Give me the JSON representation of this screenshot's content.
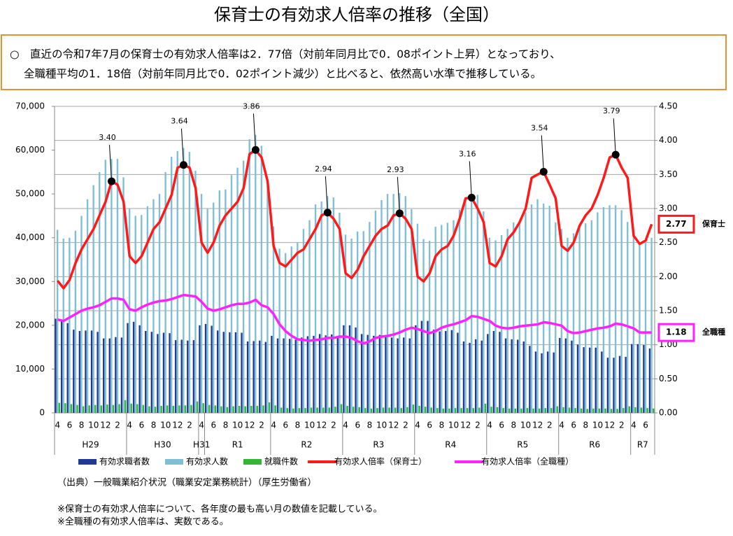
{
  "chart_data": {
    "type": "bar-line",
    "title": "保育士の有効求人倍率の推移（全国）",
    "summary": [
      "○　直近の令和7年7月の保育士の有効求人倍率は2．77倍（対前年同月比で0．08ポイント上昇）となっており、",
      "全職種平均の1．18倍（対前年同月比で0．02ポイント減少）と比べると、依然高い水準で推移している。"
    ],
    "notes": [
      "（出典）一般職業紹介状況（職業安定業務統計）（厚生労働省）",
      "※保育士の有効求人倍率について、各年度の最も高い月の数値を記載している。",
      "※全職種の有効求人倍率は、実数である。"
    ],
    "categories": [
      "4",
      null,
      "6",
      null,
      "8",
      null,
      "10",
      null,
      "12",
      null,
      "2",
      null,
      "4",
      null,
      "6",
      null,
      "8",
      null,
      "10",
      null,
      "12",
      null,
      "2",
      null,
      "4",
      null,
      "6",
      null,
      "8",
      null,
      "10",
      null,
      "12",
      null,
      "2",
      null,
      "4",
      null,
      "6",
      null,
      "8",
      null,
      "10",
      null,
      "12",
      null,
      "2",
      null,
      "4",
      null,
      "6",
      null,
      "8",
      null,
      "10",
      null,
      "12",
      null,
      "2",
      null,
      "4",
      null,
      "6",
      null,
      "8",
      null,
      "10",
      null,
      "12",
      null,
      "2",
      null,
      "4",
      null,
      "6",
      null,
      "8",
      null,
      "10",
      null,
      "12",
      null,
      "2",
      null,
      "4",
      null,
      "6",
      null,
      "8",
      null,
      "10",
      null,
      "12",
      null,
      "2",
      null,
      "4",
      null,
      "6",
      null
    ],
    "groups": [
      {
        "label": "H29",
        "months": 12
      },
      {
        "label": "H30",
        "months": 12
      },
      {
        "label": "H31",
        "months": 1
      },
      {
        "label": "R1",
        "months": 11
      },
      {
        "label": "R2",
        "months": 12
      },
      {
        "label": "R3",
        "months": 12
      },
      {
        "label": "R4",
        "months": 12
      },
      {
        "label": "R5",
        "months": 12
      },
      {
        "label": "R6",
        "months": 12
      },
      {
        "label": "R7",
        "months": 4
      }
    ],
    "ylim": [
      0,
      70000
    ],
    "yticks": [
      0,
      {
        "value": 10000,
        "label": "10,000"
      },
      {
        "value": 20000,
        "label": "20,000"
      },
      {
        "value": 30000,
        "label": "30,000"
      },
      {
        "value": 40000,
        "label": "40,000"
      },
      {
        "value": 50000,
        "label": "50,000"
      },
      {
        "value": 60000,
        "label": "60,000"
      },
      {
        "value": 70000,
        "label": "70,000"
      }
    ],
    "y2lim": [
      0,
      4.5
    ],
    "y2ticks": [
      {
        "value": 0,
        "label": "0.00"
      },
      {
        "value": 0.5,
        "label": "0.50"
      },
      {
        "value": 1,
        "label": "1.00"
      },
      {
        "value": 1.5,
        "label": "1.50"
      },
      {
        "value": 2,
        "label": "2.00"
      },
      {
        "value": 2.5,
        "label": "2.50"
      },
      {
        "value": 3,
        "label": "3.00"
      },
      {
        "value": 3.5,
        "label": "3.50"
      },
      {
        "value": 4,
        "label": "4.00"
      },
      {
        "value": 4.5,
        "label": "4.50"
      }
    ],
    "grid": true,
    "series": [
      {
        "name": "有効求職者数",
        "kind": "bar",
        "color": "#1f3a93",
        "values": [
          21500,
          21000,
          20500,
          19000,
          18700,
          18800,
          18800,
          18500,
          17000,
          17000,
          17300,
          17200,
          20500,
          20800,
          20000,
          18700,
          18500,
          18000,
          18300,
          18200,
          16600,
          16700,
          16500,
          16600,
          20000,
          20300,
          19900,
          18800,
          18500,
          18400,
          18400,
          18300,
          16300,
          16400,
          16500,
          16200,
          17600,
          17000,
          17000,
          16900,
          16700,
          17200,
          17500,
          17600,
          18000,
          17700,
          17900,
          17200,
          20000,
          20000,
          19500,
          18000,
          17800,
          17600,
          17800,
          17500,
          17200,
          17000,
          17200,
          17000,
          20000,
          21000,
          21000,
          19000,
          18600,
          18700,
          18900,
          18300,
          16300,
          16000,
          16800,
          16500,
          18000,
          18700,
          18500,
          17000,
          16800,
          16700,
          16300,
          15300,
          14000,
          13600,
          14000,
          13800,
          17100,
          17000,
          16500,
          15600,
          15000,
          14900,
          14900,
          14000,
          12600,
          12600,
          13000,
          12800,
          15700,
          15700,
          15500,
          14700
        ]
      },
      {
        "name": "有効求人数",
        "kind": "bar",
        "color": "#7fbfd6",
        "values": [
          41800,
          39800,
          40000,
          41600,
          45000,
          48800,
          52000,
          55000,
          57800,
          58000,
          58000,
          53800,
          46600,
          45000,
          45200,
          47200,
          48800,
          50000,
          55000,
          58500,
          59800,
          60500,
          59600,
          55300,
          50000,
          46700,
          48000,
          50800,
          51000,
          54300,
          56000,
          57600,
          62500,
          63500,
          61000,
          53000,
          42600,
          37500,
          36500,
          38000,
          39000,
          42000,
          44000,
          47600,
          48300,
          49500,
          49200,
          45700,
          40700,
          39800,
          41400,
          41500,
          43600,
          46200,
          48600,
          50000,
          50000,
          50200,
          49500,
          46500,
          43200,
          39700,
          39300,
          42500,
          42900,
          43400,
          44000,
          46400,
          48600,
          50000,
          49800,
          46000,
          40000,
          39400,
          40600,
          42000,
          43500,
          43300,
          45800,
          47600,
          48800,
          47800,
          47300,
          43500,
          42000,
          40000,
          41000,
          42700,
          43300,
          44000,
          45800,
          47000,
          47400,
          47400,
          46300,
          43600,
          40600,
          38400,
          38800,
          40000
        ]
      },
      {
        "name": "就職件数",
        "kind": "bar",
        "color": "#33b633",
        "values": [
          2300,
          2200,
          2000,
          1800,
          1500,
          1700,
          1800,
          1700,
          1900,
          1800,
          2000,
          2900,
          2100,
          2000,
          1800,
          1500,
          1400,
          1600,
          1700,
          1600,
          1700,
          1700,
          1800,
          2600,
          2200,
          1800,
          1700,
          1500,
          1300,
          1500,
          1600,
          1500,
          1600,
          1600,
          1700,
          2400,
          1700,
          1200,
          1100,
          1000,
          1100,
          1100,
          1200,
          1200,
          1200,
          1200,
          1400,
          2000,
          1600,
          1400,
          1300,
          1100,
          1000,
          1100,
          1200,
          1200,
          1200,
          1100,
          1300,
          1900,
          1600,
          1400,
          1200,
          1100,
          1000,
          1000,
          1100,
          1100,
          1100,
          1100,
          1200,
          2100,
          1400,
          1300,
          1100,
          1000,
          1000,
          1000,
          1100,
          1000,
          1000,
          1100,
          1100,
          1500,
          1300,
          1200,
          1100,
          1000,
          900,
          1000,
          1000,
          1000,
          900,
          900,
          1100,
          1500,
          1300,
          1200,
          1100,
          1000
        ]
      },
      {
        "name": "有効求人倍率（保育士）",
        "kind": "line",
        "axis": "y2",
        "color": "#ff1a1a",
        "end_label": "保育士",
        "values": [
          1.94,
          1.83,
          1.95,
          2.2,
          2.4,
          2.55,
          2.7,
          2.9,
          3.1,
          3.4,
          3.35,
          3.1,
          2.3,
          2.2,
          2.3,
          2.5,
          2.7,
          2.8,
          3.0,
          3.2,
          3.6,
          3.64,
          3.6,
          3.3,
          2.5,
          2.35,
          2.5,
          2.75,
          2.9,
          3.0,
          3.1,
          3.3,
          3.8,
          3.86,
          3.75,
          3.4,
          2.45,
          2.2,
          2.15,
          2.25,
          2.35,
          2.4,
          2.55,
          2.7,
          2.9,
          2.94,
          2.85,
          2.7,
          2.05,
          1.98,
          2.1,
          2.3,
          2.45,
          2.6,
          2.7,
          2.75,
          2.9,
          2.93,
          2.85,
          2.7,
          2.0,
          1.93,
          2.05,
          2.3,
          2.4,
          2.45,
          2.6,
          2.85,
          3.15,
          3.16,
          3.0,
          2.8,
          2.2,
          2.15,
          2.3,
          2.55,
          2.65,
          2.8,
          3.0,
          3.45,
          3.5,
          3.54,
          3.35,
          3.15,
          2.45,
          2.38,
          2.5,
          2.75,
          2.9,
          3.0,
          3.2,
          3.45,
          3.75,
          3.79,
          3.6,
          3.45,
          2.6,
          2.48,
          2.53,
          2.77
        ],
        "value_labels": [
          null,
          null,
          null,
          null,
          null,
          null,
          null,
          null,
          null,
          "3.40",
          null,
          null,
          null,
          null,
          null,
          null,
          null,
          null,
          null,
          null,
          null,
          "3.64",
          null,
          null,
          null,
          null,
          null,
          null,
          null,
          null,
          null,
          null,
          null,
          "3.86",
          null,
          null,
          null,
          null,
          null,
          null,
          null,
          null,
          null,
          null,
          null,
          "2.94",
          null,
          null,
          null,
          null,
          null,
          null,
          null,
          null,
          null,
          null,
          null,
          "2.93",
          null,
          null,
          null,
          null,
          null,
          null,
          null,
          null,
          null,
          null,
          null,
          "3.16",
          null,
          null,
          null,
          null,
          null,
          null,
          null,
          null,
          null,
          null,
          null,
          "3.54",
          null,
          null,
          null,
          null,
          null,
          null,
          null,
          null,
          null,
          null,
          null,
          "3.79",
          null,
          null,
          null,
          null,
          null,
          null
        ]
      },
      {
        "name": "有効求人倍率（全職種）",
        "kind": "line",
        "axis": "y2",
        "color": "#ff22ff",
        "end_label": "全職種",
        "values": [
          1.37,
          1.35,
          1.4,
          1.45,
          1.5,
          1.53,
          1.55,
          1.58,
          1.63,
          1.68,
          1.68,
          1.66,
          1.52,
          1.5,
          1.55,
          1.59,
          1.62,
          1.64,
          1.65,
          1.67,
          1.7,
          1.73,
          1.72,
          1.71,
          1.63,
          1.53,
          1.5,
          1.52,
          1.55,
          1.58,
          1.6,
          1.6,
          1.62,
          1.66,
          1.58,
          1.55,
          1.45,
          1.3,
          1.2,
          1.13,
          1.08,
          1.07,
          1.06,
          1.07,
          1.08,
          1.1,
          1.1,
          1.12,
          1.12,
          1.1,
          1.05,
          1.02,
          1.05,
          1.1,
          1.12,
          1.13,
          1.15,
          1.18,
          1.22,
          1.25,
          1.23,
          1.2,
          1.17,
          1.2,
          1.25,
          1.28,
          1.3,
          1.33,
          1.36,
          1.42,
          1.41,
          1.38,
          1.35,
          1.28,
          1.25,
          1.24,
          1.25,
          1.27,
          1.28,
          1.29,
          1.3,
          1.33,
          1.32,
          1.3,
          1.28,
          1.2,
          1.17,
          1.18,
          1.2,
          1.22,
          1.24,
          1.25,
          1.27,
          1.31,
          1.3,
          1.27,
          1.24,
          1.18,
          1.18,
          1.18
        ]
      }
    ]
  }
}
